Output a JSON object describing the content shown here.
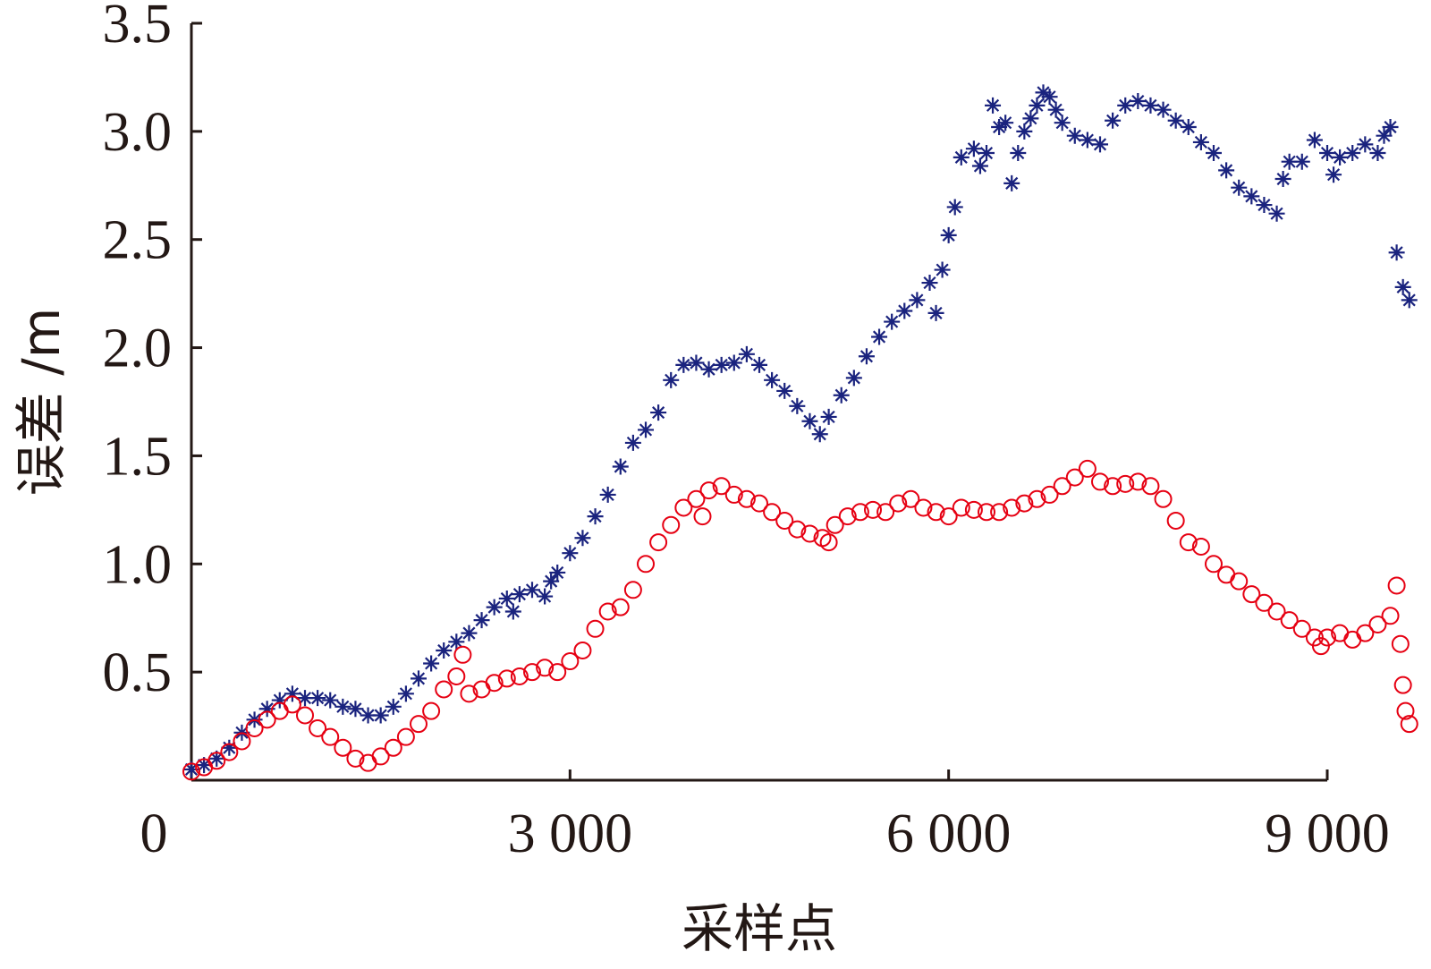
{
  "chart_data": {
    "type": "scatter",
    "title": "",
    "xlabel": "采样点",
    "ylabel": "误差 /m",
    "xlim": [
      0,
      9000
    ],
    "ylim": [
      0,
      3.5
    ],
    "grid": false,
    "legend": "none",
    "x_ticks": [
      {
        "value": 0,
        "label": "0"
      },
      {
        "value": 3000,
        "label": "3 000"
      },
      {
        "value": 6000,
        "label": "6 000"
      },
      {
        "value": 9000,
        "label": "9 000"
      }
    ],
    "y_ticks": [
      {
        "value": 0.5,
        "label": "0.5"
      },
      {
        "value": 1.0,
        "label": "1.0"
      },
      {
        "value": 1.5,
        "label": "1.5"
      },
      {
        "value": 2.0,
        "label": "2.0"
      },
      {
        "value": 2.5,
        "label": "2.5"
      },
      {
        "value": 3.0,
        "label": "3.0"
      },
      {
        "value": 3.5,
        "label": "3.5"
      }
    ],
    "series": [
      {
        "marker": "asterisk",
        "color": "#1a237e",
        "points": [
          [
            0,
            0.05
          ],
          [
            100,
            0.07
          ],
          [
            200,
            0.1
          ],
          [
            300,
            0.15
          ],
          [
            400,
            0.22
          ],
          [
            500,
            0.28
          ],
          [
            600,
            0.33
          ],
          [
            700,
            0.37
          ],
          [
            800,
            0.4
          ],
          [
            900,
            0.38
          ],
          [
            1000,
            0.38
          ],
          [
            1100,
            0.37
          ],
          [
            1200,
            0.34
          ],
          [
            1300,
            0.33
          ],
          [
            1400,
            0.3
          ],
          [
            1500,
            0.3
          ],
          [
            1600,
            0.34
          ],
          [
            1700,
            0.4
          ],
          [
            1800,
            0.47
          ],
          [
            1900,
            0.54
          ],
          [
            2000,
            0.6
          ],
          [
            2100,
            0.64
          ],
          [
            2200,
            0.68
          ],
          [
            2300,
            0.74
          ],
          [
            2400,
            0.8
          ],
          [
            2500,
            0.84
          ],
          [
            2550,
            0.78
          ],
          [
            2600,
            0.86
          ],
          [
            2700,
            0.88
          ],
          [
            2800,
            0.85
          ],
          [
            2850,
            0.92
          ],
          [
            2900,
            0.96
          ],
          [
            3000,
            1.05
          ],
          [
            3100,
            1.12
          ],
          [
            3200,
            1.22
          ],
          [
            3300,
            1.32
          ],
          [
            3400,
            1.45
          ],
          [
            3500,
            1.56
          ],
          [
            3600,
            1.62
          ],
          [
            3700,
            1.7
          ],
          [
            3800,
            1.85
          ],
          [
            3900,
            1.92
          ],
          [
            4000,
            1.93
          ],
          [
            4100,
            1.9
          ],
          [
            4200,
            1.92
          ],
          [
            4300,
            1.93
          ],
          [
            4400,
            1.97
          ],
          [
            4500,
            1.92
          ],
          [
            4600,
            1.85
          ],
          [
            4700,
            1.8
          ],
          [
            4800,
            1.73
          ],
          [
            4900,
            1.66
          ],
          [
            4980,
            1.6
          ],
          [
            5050,
            1.68
          ],
          [
            5150,
            1.78
          ],
          [
            5250,
            1.86
          ],
          [
            5350,
            1.96
          ],
          [
            5450,
            2.05
          ],
          [
            5550,
            2.12
          ],
          [
            5650,
            2.17
          ],
          [
            5750,
            2.22
          ],
          [
            5850,
            2.3
          ],
          [
            5900,
            2.16
          ],
          [
            5950,
            2.36
          ],
          [
            6000,
            2.52
          ],
          [
            6050,
            2.65
          ],
          [
            6100,
            2.88
          ],
          [
            6200,
            2.92
          ],
          [
            6250,
            2.84
          ],
          [
            6300,
            2.9
          ],
          [
            6350,
            3.12
          ],
          [
            6400,
            3.02
          ],
          [
            6450,
            3.04
          ],
          [
            6500,
            2.76
          ],
          [
            6550,
            2.9
          ],
          [
            6600,
            3.0
          ],
          [
            6650,
            3.06
          ],
          [
            6700,
            3.12
          ],
          [
            6750,
            3.18
          ],
          [
            6800,
            3.16
          ],
          [
            6850,
            3.1
          ],
          [
            6900,
            3.04
          ],
          [
            7000,
            2.98
          ],
          [
            7100,
            2.96
          ],
          [
            7200,
            2.94
          ],
          [
            7300,
            3.05
          ],
          [
            7400,
            3.12
          ],
          [
            7500,
            3.14
          ],
          [
            7600,
            3.12
          ],
          [
            7700,
            3.1
          ],
          [
            7800,
            3.05
          ],
          [
            7900,
            3.02
          ],
          [
            8000,
            2.95
          ],
          [
            8100,
            2.9
          ],
          [
            8200,
            2.82
          ],
          [
            8300,
            2.74
          ],
          [
            8400,
            2.7
          ],
          [
            8500,
            2.66
          ],
          [
            8600,
            2.62
          ],
          [
            8650,
            2.78
          ],
          [
            8700,
            2.86
          ],
          [
            8800,
            2.86
          ],
          [
            8900,
            2.96
          ],
          [
            9000,
            2.9
          ],
          [
            9050,
            2.8
          ],
          [
            9100,
            2.88
          ],
          [
            9200,
            2.9
          ],
          [
            9300,
            2.94
          ],
          [
            9400,
            2.9
          ],
          [
            9450,
            2.98
          ],
          [
            9500,
            3.02
          ],
          [
            9550,
            2.44
          ],
          [
            9600,
            2.28
          ],
          [
            9650,
            2.22
          ]
        ]
      },
      {
        "marker": "circle",
        "color": "#e60012",
        "points": [
          [
            0,
            0.04
          ],
          [
            100,
            0.06
          ],
          [
            200,
            0.09
          ],
          [
            300,
            0.13
          ],
          [
            400,
            0.18
          ],
          [
            500,
            0.24
          ],
          [
            600,
            0.28
          ],
          [
            700,
            0.32
          ],
          [
            800,
            0.35
          ],
          [
            900,
            0.3
          ],
          [
            1000,
            0.24
          ],
          [
            1100,
            0.2
          ],
          [
            1200,
            0.15
          ],
          [
            1300,
            0.1
          ],
          [
            1400,
            0.08
          ],
          [
            1500,
            0.11
          ],
          [
            1600,
            0.15
          ],
          [
            1700,
            0.2
          ],
          [
            1800,
            0.26
          ],
          [
            1900,
            0.32
          ],
          [
            2000,
            0.42
          ],
          [
            2100,
            0.48
          ],
          [
            2150,
            0.58
          ],
          [
            2200,
            0.4
          ],
          [
            2300,
            0.42
          ],
          [
            2400,
            0.45
          ],
          [
            2500,
            0.47
          ],
          [
            2600,
            0.48
          ],
          [
            2700,
            0.5
          ],
          [
            2800,
            0.52
          ],
          [
            2900,
            0.5
          ],
          [
            3000,
            0.55
          ],
          [
            3100,
            0.6
          ],
          [
            3200,
            0.7
          ],
          [
            3300,
            0.78
          ],
          [
            3400,
            0.8
          ],
          [
            3500,
            0.88
          ],
          [
            3600,
            1.0
          ],
          [
            3700,
            1.1
          ],
          [
            3800,
            1.18
          ],
          [
            3900,
            1.26
          ],
          [
            4000,
            1.3
          ],
          [
            4050,
            1.22
          ],
          [
            4100,
            1.34
          ],
          [
            4200,
            1.36
          ],
          [
            4300,
            1.32
          ],
          [
            4400,
            1.3
          ],
          [
            4500,
            1.28
          ],
          [
            4600,
            1.24
          ],
          [
            4700,
            1.2
          ],
          [
            4800,
            1.16
          ],
          [
            4900,
            1.14
          ],
          [
            5000,
            1.12
          ],
          [
            5050,
            1.1
          ],
          [
            5100,
            1.18
          ],
          [
            5200,
            1.22
          ],
          [
            5300,
            1.24
          ],
          [
            5400,
            1.25
          ],
          [
            5500,
            1.24
          ],
          [
            5600,
            1.28
          ],
          [
            5700,
            1.3
          ],
          [
            5800,
            1.26
          ],
          [
            5900,
            1.24
          ],
          [
            6000,
            1.22
          ],
          [
            6100,
            1.26
          ],
          [
            6200,
            1.25
          ],
          [
            6300,
            1.24
          ],
          [
            6400,
            1.24
          ],
          [
            6500,
            1.26
          ],
          [
            6600,
            1.28
          ],
          [
            6700,
            1.3
          ],
          [
            6800,
            1.32
          ],
          [
            6900,
            1.36
          ],
          [
            7000,
            1.4
          ],
          [
            7100,
            1.44
          ],
          [
            7200,
            1.38
          ],
          [
            7300,
            1.36
          ],
          [
            7400,
            1.37
          ],
          [
            7500,
            1.38
          ],
          [
            7600,
            1.36
          ],
          [
            7700,
            1.3
          ],
          [
            7800,
            1.2
          ],
          [
            7900,
            1.1
          ],
          [
            8000,
            1.08
          ],
          [
            8100,
            1.0
          ],
          [
            8200,
            0.95
          ],
          [
            8300,
            0.92
          ],
          [
            8400,
            0.86
          ],
          [
            8500,
            0.82
          ],
          [
            8600,
            0.78
          ],
          [
            8700,
            0.74
          ],
          [
            8800,
            0.7
          ],
          [
            8900,
            0.66
          ],
          [
            8950,
            0.62
          ],
          [
            9000,
            0.66
          ],
          [
            9100,
            0.68
          ],
          [
            9200,
            0.65
          ],
          [
            9300,
            0.68
          ],
          [
            9400,
            0.72
          ],
          [
            9500,
            0.76
          ],
          [
            9550,
            0.9
          ],
          [
            9580,
            0.63
          ],
          [
            9600,
            0.44
          ],
          [
            9620,
            0.32
          ],
          [
            9650,
            0.26
          ]
        ]
      }
    ]
  }
}
